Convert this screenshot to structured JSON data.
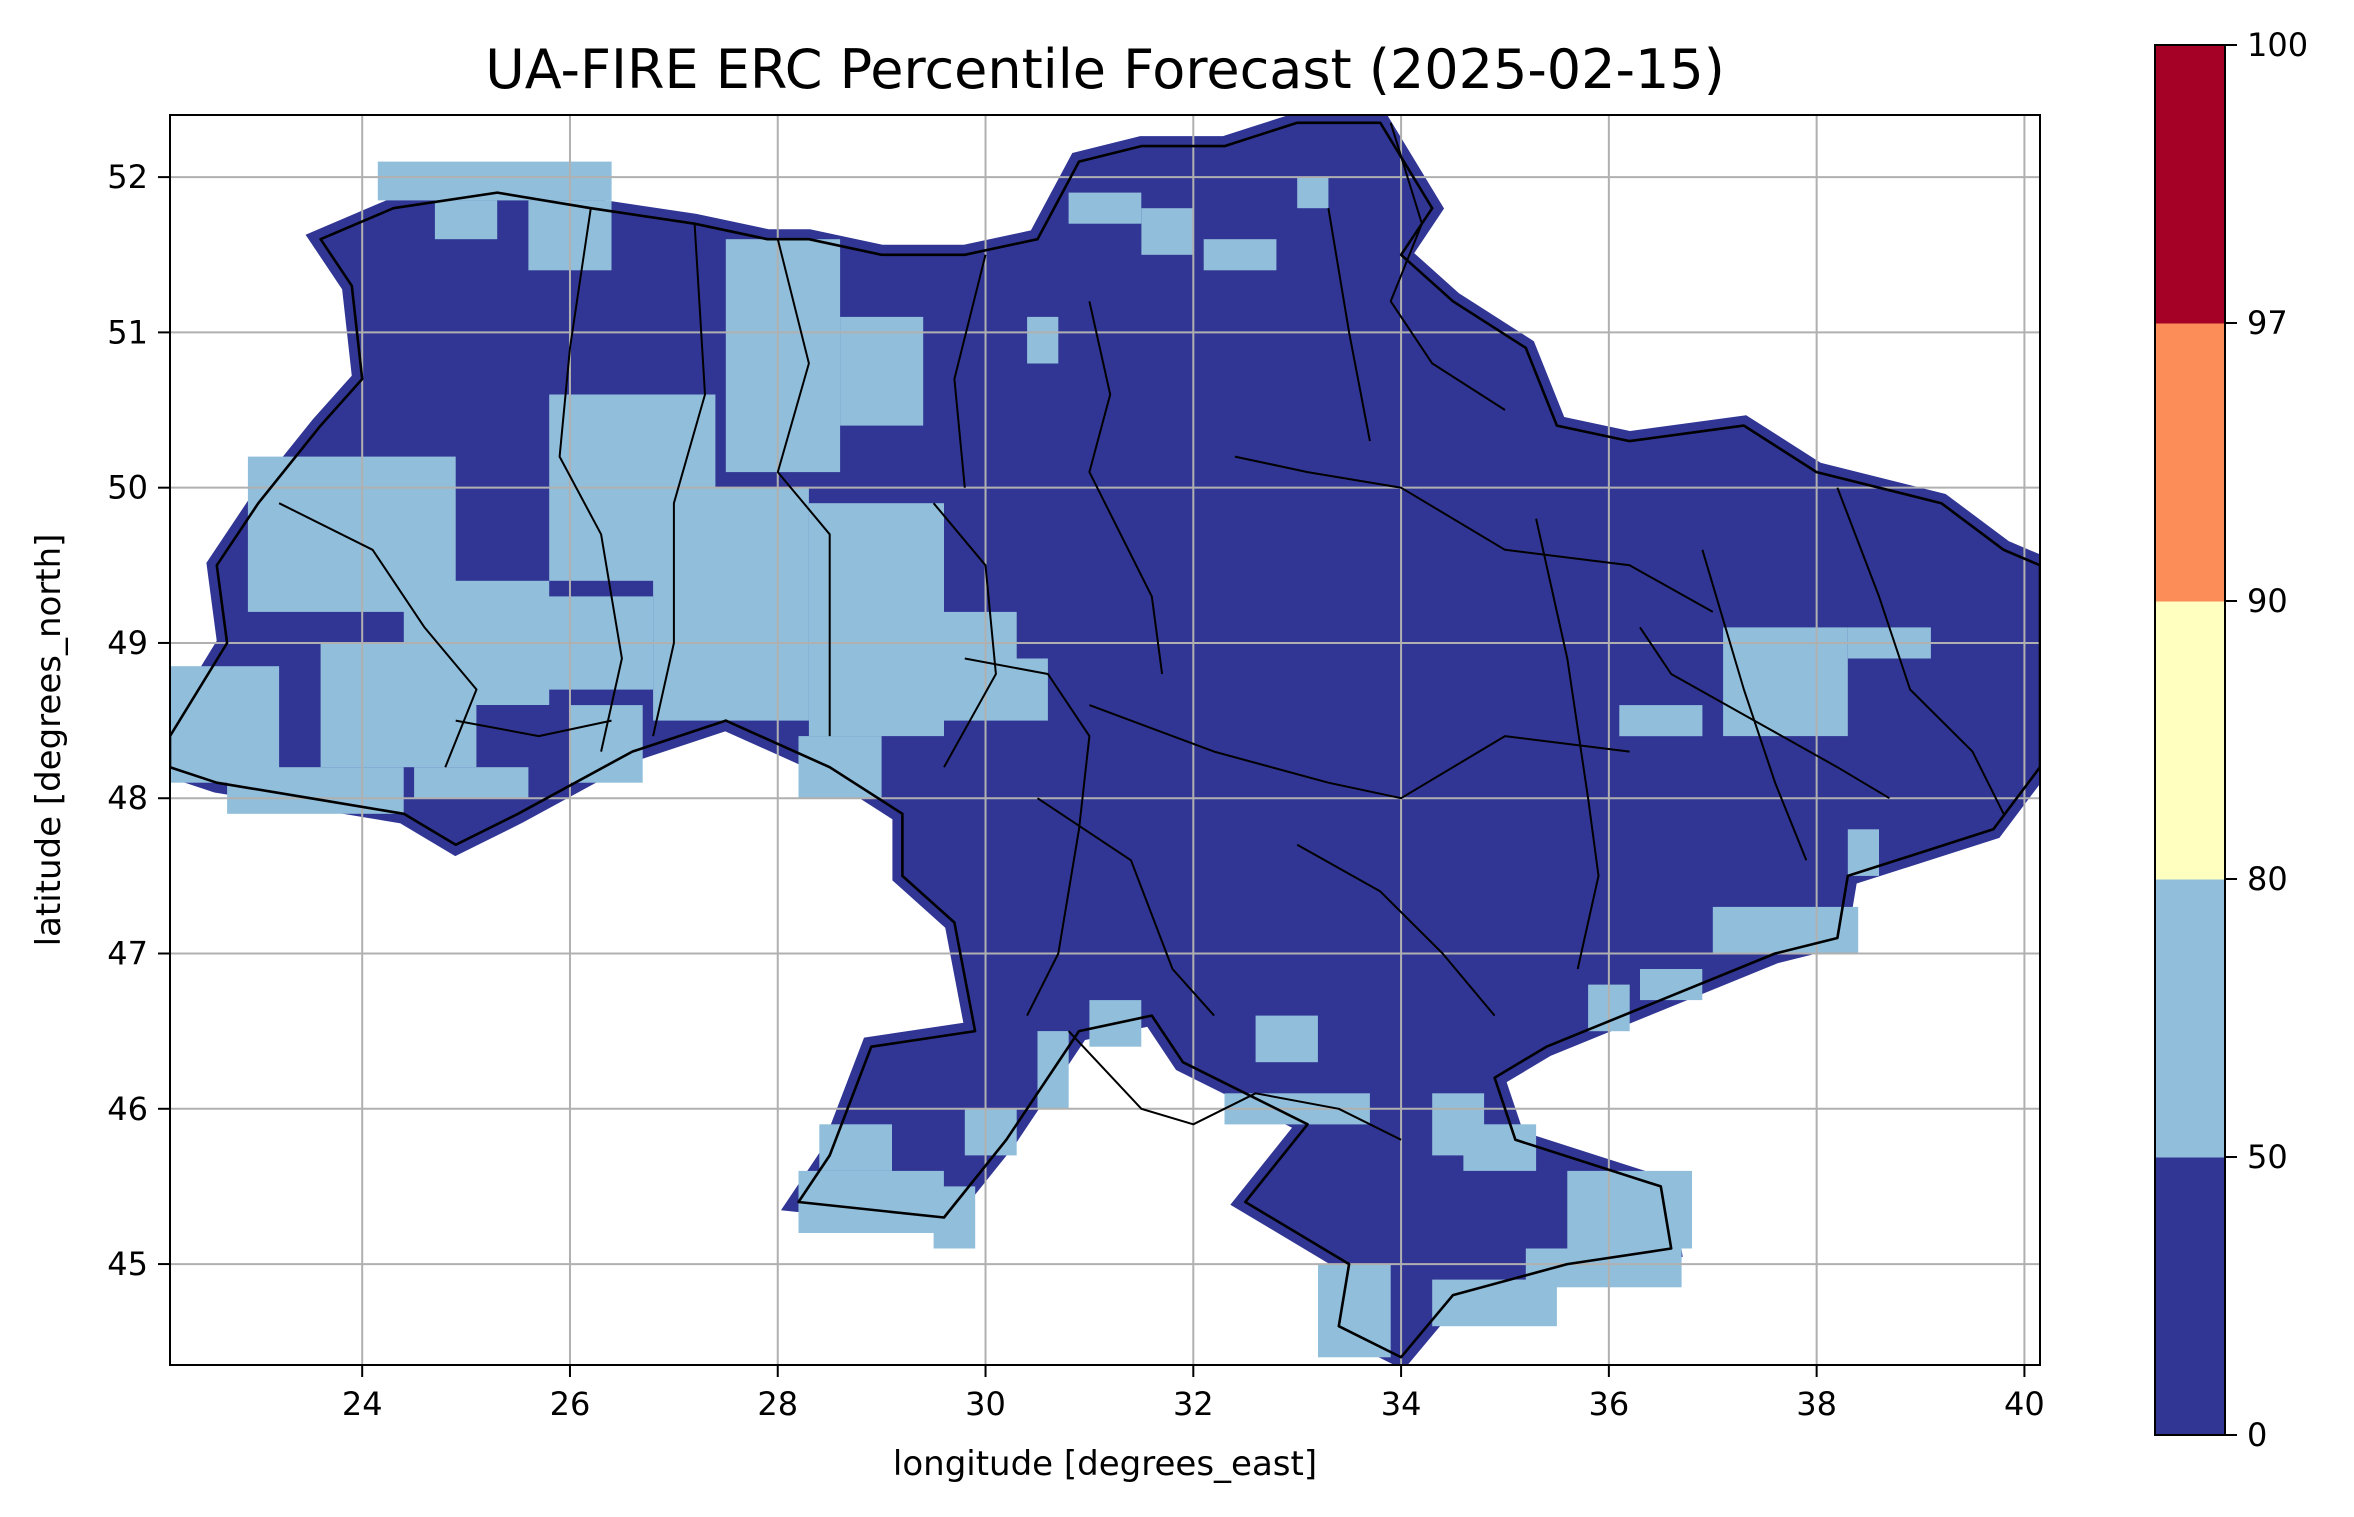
{
  "title": "UA-FIRE ERC Percentile Forecast (2025-02-15)",
  "xlabel": "longitude [degrees_east]",
  "ylabel": "latitude [degrees_north]",
  "chart_data": {
    "type": "heatmap",
    "title": "UA-FIRE ERC Percentile Forecast (2025-02-15)",
    "xlabel": "longitude [degrees_east]",
    "ylabel": "latitude [degrees_north]",
    "xlim": [
      22.15,
      40.15
    ],
    "ylim": [
      44.35,
      52.4
    ],
    "x_ticks": [
      "24",
      "26",
      "28",
      "30",
      "32",
      "34",
      "36",
      "38",
      "40"
    ],
    "y_ticks": [
      "45",
      "46",
      "47",
      "48",
      "49",
      "50",
      "51",
      "52"
    ],
    "grid": true,
    "colorbar": {
      "placement": "right",
      "bounds": [
        0,
        50,
        80,
        90,
        97,
        100
      ],
      "tick_labels": [
        "0",
        "50",
        "80",
        "90",
        "97",
        "100"
      ],
      "colors": [
        "#313695",
        "#91bfdb",
        "#ffffbf",
        "#fc8d59",
        "#a50026"
      ]
    },
    "visible_classes": [
      "0-50",
      "50-80"
    ],
    "class_colors": {
      "low": "#313695",
      "mid": "#91bfdb"
    }
  }
}
